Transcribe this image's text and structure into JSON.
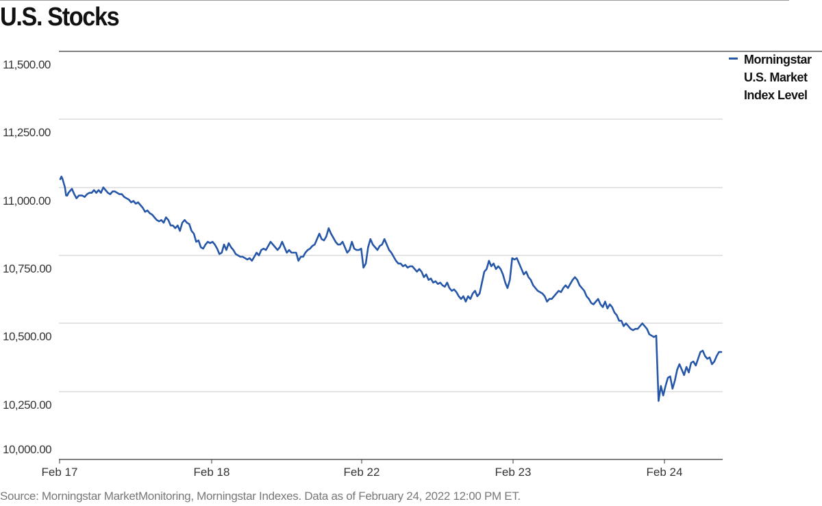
{
  "title": "U.S. Stocks",
  "source": "Source: Morningstar MarketMonitoring, Morningstar Indexes. Data as of February 24, 2022 12:00 PM ET.",
  "colors": {
    "line": "#2656a8",
    "grid": "#c8c8c8",
    "axis": "#333333"
  },
  "chart_data": {
    "type": "line",
    "title": "U.S. Stocks",
    "xlabel": "",
    "ylabel": "",
    "ylim": [
      10000,
      11500
    ],
    "yticks": [
      "11,500.00",
      "11,250.00",
      "11,000.00",
      "10,750.00",
      "10,500.00",
      "10,250.00",
      "10,000.00"
    ],
    "ytick_values": [
      11500,
      11250,
      11000,
      10750,
      10500,
      10250,
      10000
    ],
    "xticks": [
      "Feb 17",
      "Feb 18",
      "Feb 22",
      "Feb 23",
      "Feb 24"
    ],
    "grid": true,
    "legend_position": "top-right",
    "series": [
      {
        "name": "Morningstar U.S. Market Index Level",
        "points": [
          [
            0,
            11030
          ],
          [
            0.6,
            11040
          ],
          [
            1.2,
            11030
          ],
          [
            2.4,
            11000
          ],
          [
            3.0,
            10970
          ],
          [
            3.6,
            10970
          ],
          [
            4.2,
            10980
          ],
          [
            5.4,
            10990
          ],
          [
            6.0,
            10995
          ],
          [
            7.2,
            10975
          ],
          [
            8.4,
            10960
          ],
          [
            9.6,
            10970
          ],
          [
            11.4,
            10970
          ],
          [
            12.6,
            10965
          ],
          [
            13.8,
            10975
          ],
          [
            15.0,
            10980
          ],
          [
            16.2,
            10980
          ],
          [
            17.4,
            10990
          ],
          [
            18.6,
            10980
          ],
          [
            19.8,
            10990
          ],
          [
            21.0,
            10980
          ],
          [
            22.2,
            11000
          ],
          [
            23.4,
            10990
          ],
          [
            24.6,
            10980
          ],
          [
            25.8,
            10975
          ],
          [
            27.0,
            10985
          ],
          [
            28.2,
            10985
          ],
          [
            29.4,
            10980
          ],
          [
            30.6,
            10975
          ],
          [
            31.8,
            10975
          ],
          [
            33.0,
            10965
          ],
          [
            34.2,
            10960
          ],
          [
            35.4,
            10955
          ],
          [
            36.6,
            10945
          ],
          [
            37.8,
            10950
          ],
          [
            39.0,
            10940
          ],
          [
            40.2,
            10945
          ],
          [
            41.4,
            10935
          ],
          [
            42.6,
            10925
          ],
          [
            43.8,
            10910
          ],
          [
            45.0,
            10915
          ],
          [
            46.2,
            10905
          ],
          [
            47.4,
            10900
          ],
          [
            48.6,
            10890
          ],
          [
            49.8,
            10880
          ],
          [
            51.0,
            10875
          ],
          [
            52.2,
            10880
          ],
          [
            53.4,
            10870
          ],
          [
            54.6,
            10890
          ],
          [
            55.8,
            10880
          ],
          [
            57.0,
            10860
          ],
          [
            58.2,
            10860
          ],
          [
            59.4,
            10850
          ],
          [
            60.6,
            10860
          ],
          [
            61.8,
            10840
          ],
          [
            63.0,
            10870
          ],
          [
            64.2,
            10880
          ],
          [
            65.4,
            10870
          ],
          [
            66.6,
            10865
          ],
          [
            67.8,
            10840
          ],
          [
            69.0,
            10830
          ],
          [
            70.2,
            10800
          ],
          [
            71.4,
            10805
          ],
          [
            72.6,
            10780
          ],
          [
            73.8,
            10775
          ],
          [
            75.0,
            10790
          ],
          [
            76.2,
            10800
          ],
          [
            77.4,
            10795
          ],
          [
            78.6,
            10800
          ],
          [
            79.8,
            10790
          ],
          [
            81.0,
            10775
          ],
          [
            82.2,
            10755
          ],
          [
            83.4,
            10760
          ],
          [
            84.6,
            10790
          ],
          [
            85.8,
            10770
          ],
          [
            87.0,
            10795
          ],
          [
            88.2,
            10780
          ],
          [
            89.4,
            10770
          ],
          [
            90.6,
            10755
          ],
          [
            91.8,
            10750
          ],
          [
            93.0,
            10745
          ],
          [
            94.2,
            10745
          ],
          [
            95.4,
            10740
          ],
          [
            96.6,
            10735
          ],
          [
            97.8,
            10740
          ],
          [
            99.0,
            10730
          ],
          [
            100.2,
            10745
          ],
          [
            101.4,
            10760
          ],
          [
            102.6,
            10750
          ],
          [
            103.8,
            10770
          ],
          [
            105.0,
            10775
          ],
          [
            106.2,
            10770
          ],
          [
            107.4,
            10785
          ],
          [
            108.6,
            10800
          ],
          [
            109.8,
            10790
          ],
          [
            111.0,
            10780
          ],
          [
            112.2,
            10770
          ],
          [
            113.4,
            10780
          ],
          [
            114.6,
            10800
          ],
          [
            115.8,
            10780
          ],
          [
            117.0,
            10760
          ],
          [
            118.2,
            10770
          ],
          [
            119.4,
            10760
          ],
          [
            120.6,
            10760
          ],
          [
            121.8,
            10760
          ],
          [
            123.0,
            10730
          ],
          [
            124.2,
            10745
          ],
          [
            125.4,
            10745
          ],
          [
            126.6,
            10760
          ],
          [
            127.8,
            10770
          ],
          [
            129.0,
            10775
          ],
          [
            130.2,
            10785
          ],
          [
            131.4,
            10790
          ],
          [
            132.6,
            10810
          ],
          [
            133.8,
            10830
          ],
          [
            135.0,
            10810
          ],
          [
            136.2,
            10805
          ],
          [
            137.4,
            10820
          ],
          [
            138.6,
            10850
          ],
          [
            139.8,
            10830
          ],
          [
            141.0,
            10815
          ],
          [
            142.2,
            10800
          ],
          [
            143.4,
            10790
          ],
          [
            144.6,
            10790
          ],
          [
            145.8,
            10800
          ],
          [
            147.0,
            10780
          ],
          [
            148.2,
            10760
          ],
          [
            149.4,
            10770
          ],
          [
            150.6,
            10800
          ],
          [
            151.8,
            10775
          ],
          [
            153.0,
            10770
          ],
          [
            154.2,
            10770
          ],
          [
            155.4,
            10775
          ],
          [
            156.6,
            10705
          ],
          [
            157.8,
            10720
          ],
          [
            159.0,
            10780
          ],
          [
            160.2,
            10810
          ],
          [
            161.4,
            10790
          ],
          [
            162.6,
            10780
          ],
          [
            163.8,
            10770
          ],
          [
            165.0,
            10785
          ],
          [
            166.2,
            10790
          ],
          [
            167.4,
            10810
          ],
          [
            168.6,
            10790
          ],
          [
            169.8,
            10770
          ],
          [
            171.0,
            10760
          ],
          [
            172.2,
            10745
          ],
          [
            173.4,
            10730
          ],
          [
            174.6,
            10720
          ],
          [
            175.8,
            10720
          ],
          [
            177.0,
            10710
          ],
          [
            178.2,
            10715
          ],
          [
            179.4,
            10705
          ],
          [
            180.6,
            10710
          ],
          [
            181.8,
            10710
          ],
          [
            183.0,
            10700
          ],
          [
            184.2,
            10690
          ],
          [
            185.4,
            10700
          ],
          [
            186.6,
            10690
          ],
          [
            187.8,
            10670
          ],
          [
            189.0,
            10680
          ],
          [
            190.2,
            10660
          ],
          [
            191.4,
            10665
          ],
          [
            192.6,
            10650
          ],
          [
            193.8,
            10655
          ],
          [
            195.0,
            10645
          ],
          [
            196.2,
            10650
          ],
          [
            197.4,
            10640
          ],
          [
            198.6,
            10635
          ],
          [
            199.8,
            10650
          ],
          [
            201.0,
            10630
          ],
          [
            202.2,
            10620
          ],
          [
            203.4,
            10625
          ],
          [
            204.6,
            10615
          ],
          [
            205.8,
            10600
          ],
          [
            207.0,
            10590
          ],
          [
            208.2,
            10600
          ],
          [
            209.4,
            10580
          ],
          [
            210.6,
            10600
          ],
          [
            211.8,
            10590
          ],
          [
            213.0,
            10610
          ],
          [
            214.2,
            10620
          ],
          [
            215.4,
            10600
          ],
          [
            216.6,
            10610
          ],
          [
            217.8,
            10650
          ],
          [
            219.0,
            10690
          ],
          [
            220.2,
            10700
          ],
          [
            221.4,
            10730
          ],
          [
            222.6,
            10710
          ],
          [
            223.8,
            10720
          ],
          [
            225.0,
            10700
          ],
          [
            226.2,
            10710
          ],
          [
            227.4,
            10700
          ],
          [
            228.6,
            10680
          ],
          [
            229.8,
            10650
          ],
          [
            231.0,
            10630
          ],
          [
            232.2,
            10660
          ],
          [
            233.4,
            10740
          ],
          [
            234.6,
            10735
          ],
          [
            235.8,
            10740
          ],
          [
            237.0,
            10720
          ],
          [
            238.2,
            10700
          ],
          [
            239.4,
            10680
          ],
          [
            240.6,
            10690
          ],
          [
            241.8,
            10670
          ],
          [
            243.0,
            10660
          ],
          [
            244.2,
            10640
          ],
          [
            245.4,
            10630
          ],
          [
            246.6,
            10620
          ],
          [
            247.8,
            10615
          ],
          [
            249.0,
            10610
          ],
          [
            250.2,
            10600
          ],
          [
            251.4,
            10580
          ],
          [
            252.6,
            10590
          ],
          [
            253.8,
            10590
          ],
          [
            255.0,
            10600
          ],
          [
            256.2,
            10610
          ],
          [
            257.4,
            10620
          ],
          [
            258.6,
            10615
          ],
          [
            259.8,
            10630
          ],
          [
            261.0,
            10640
          ],
          [
            262.2,
            10630
          ],
          [
            263.4,
            10645
          ],
          [
            264.6,
            10660
          ],
          [
            265.8,
            10670
          ],
          [
            267.0,
            10660
          ],
          [
            268.2,
            10640
          ],
          [
            269.4,
            10630
          ],
          [
            270.6,
            10620
          ],
          [
            271.8,
            10600
          ],
          [
            273.0,
            10590
          ],
          [
            274.2,
            10575
          ],
          [
            275.4,
            10570
          ],
          [
            276.6,
            10580
          ],
          [
            277.8,
            10590
          ],
          [
            279.0,
            10570
          ],
          [
            280.2,
            10560
          ],
          [
            281.4,
            10580
          ],
          [
            282.6,
            10555
          ],
          [
            283.8,
            10570
          ],
          [
            285.0,
            10560
          ],
          [
            286.2,
            10540
          ],
          [
            287.4,
            10530
          ],
          [
            288.6,
            10510
          ],
          [
            289.8,
            10510
          ],
          [
            291.0,
            10490
          ],
          [
            292.2,
            10500
          ],
          [
            293.4,
            10490
          ],
          [
            294.6,
            10480
          ],
          [
            295.8,
            10475
          ],
          [
            297.0,
            10480
          ],
          [
            298.2,
            10480
          ],
          [
            299.4,
            10490
          ],
          [
            300.6,
            10500
          ],
          [
            301.8,
            10490
          ],
          [
            303.0,
            10480
          ],
          [
            304.2,
            10460
          ],
          [
            305.4,
            10455
          ],
          [
            306.6,
            10450
          ],
          [
            307.8,
            10455
          ],
          [
            309.0,
            10215
          ],
          [
            310.2,
            10270
          ],
          [
            311.4,
            10235
          ],
          [
            312.6,
            10270
          ],
          [
            313.8,
            10300
          ],
          [
            315.0,
            10305
          ],
          [
            316.2,
            10260
          ],
          [
            317.4,
            10290
          ],
          [
            318.6,
            10330
          ],
          [
            319.8,
            10350
          ],
          [
            321.0,
            10330
          ],
          [
            322.2,
            10310
          ],
          [
            323.4,
            10340
          ],
          [
            324.6,
            10320
          ],
          [
            325.8,
            10355
          ],
          [
            327.0,
            10360
          ],
          [
            328.2,
            10345
          ],
          [
            329.4,
            10370
          ],
          [
            330.6,
            10395
          ],
          [
            331.8,
            10400
          ],
          [
            333.0,
            10380
          ],
          [
            334.2,
            10370
          ],
          [
            335.4,
            10375
          ],
          [
            336.6,
            10350
          ],
          [
            337.8,
            10360
          ],
          [
            339.0,
            10380
          ],
          [
            340.2,
            10395
          ],
          [
            341.4,
            10395
          ]
        ]
      }
    ]
  }
}
